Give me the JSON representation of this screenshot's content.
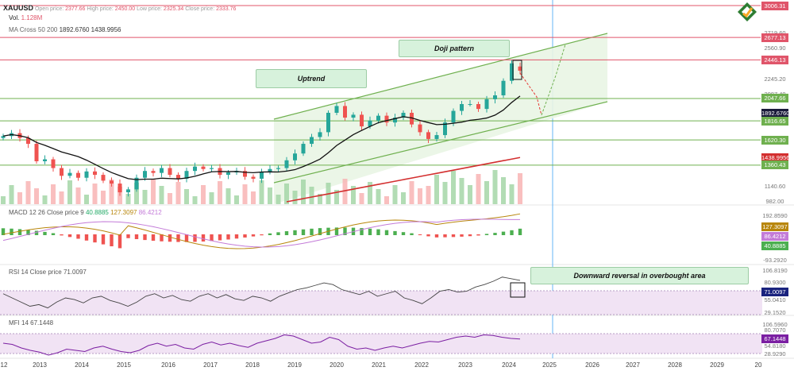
{
  "header": {
    "symbol": "XAUUSD",
    "open_label": "Open price:",
    "open_value": "2377.66",
    "high_label": "High price:",
    "high_value": "2450.00",
    "low_label": "Low price:",
    "low_value": "2325.34",
    "close_label": "Close price:",
    "close_value": "2333.76",
    "vol_label": "Vol.",
    "vol_value": "1.128M",
    "ma_label": "MA Cross 50 200",
    "ma_value1": "1892.6760",
    "ma_value2": "1438.9956"
  },
  "annotations": {
    "uptrend": "Uptrend",
    "doji": "Doji pattern",
    "reversal": "Downward reversal in overbought area"
  },
  "indicators": {
    "macd_label": "MACD 12 26 Close price 9",
    "macd_v1": "40.8885",
    "macd_v2": "127.3097",
    "macd_v3": "86.4212",
    "rsi_label": "RSI 14 Close price",
    "rsi_value": "71.0097",
    "mfi_label": "MFI 14",
    "mfi_value": "67.1448"
  },
  "colors": {
    "bull": "#26a69a",
    "bear": "#ef5350",
    "ma50": "#111111",
    "ma200": "#d32f2f",
    "trend": "#6fb04f",
    "level_red": "#e0556a",
    "level_green": "#6fb04f",
    "rsi_band": "#f3e5f5",
    "mfi_line": "#7b1fa2",
    "macd_line": "#b8860b",
    "signal_line": "#c37bd8"
  },
  "chart_data": {
    "type": "candlestick",
    "title": "XAUUSD",
    "x_axis_years": [
      "12",
      "2013",
      "2014",
      "2015",
      "2016",
      "2017",
      "2018",
      "2019",
      "2020",
      "2021",
      "2022",
      "2023",
      "2024",
      "2025",
      "2026",
      "2027",
      "2028",
      "2029",
      "20"
    ],
    "price_axis_ticks": [
      "3006.31",
      "2719.60",
      "2677.13",
      "2560.90",
      "2446.13",
      "2245.20",
      "2087.40",
      "2047.66",
      "1892.6760",
      "1816.65",
      "1620.30",
      "1438.9956",
      "1360.43",
      "1140.60",
      "982.00"
    ],
    "levels": {
      "red": [
        "3006.31",
        "2677.13",
        "2446.13"
      ],
      "green": [
        "2047.66",
        "1816.65",
        "1620.30",
        "1360.43"
      ]
    },
    "ma_values": [
      "1892.6760",
      "1438.9956"
    ],
    "macd_axis_ticks": [
      "192.8590",
      "127.3097",
      "86.4212",
      "40.8885",
      "-93.2920"
    ],
    "rsi_axis_ticks": [
      "106.8190",
      "80.9300",
      "71.0097",
      "55.0410",
      "29.1520"
    ],
    "mfi_axis_ticks": [
      "106.5960",
      "80.7070",
      "67.1448",
      "54.8180",
      "28.9290"
    ],
    "series_close": [
      1660,
      1690,
      1640,
      1580,
      1400,
      1420,
      1330,
      1250,
      1280,
      1230,
      1295,
      1260,
      1200,
      1170,
      1080,
      1110,
      1230,
      1300,
      1280,
      1330,
      1260,
      1220,
      1300,
      1345,
      1320,
      1330,
      1260,
      1285,
      1300,
      1240,
      1220,
      1290,
      1320,
      1330,
      1410,
      1480,
      1580,
      1650,
      1700,
      1900,
      1970,
      1850,
      1880,
      1760,
      1820,
      1870,
      1800,
      1850,
      1900,
      1780,
      1700,
      1630,
      1670,
      1800,
      1920,
      1990,
      1990,
      1940,
      2040,
      2080,
      2230,
      2410,
      2334
    ],
    "rsi_values": [
      55,
      50,
      45,
      40,
      42,
      38,
      45,
      50,
      48,
      44,
      50,
      52,
      47,
      44,
      40,
      45,
      52,
      55,
      50,
      53,
      48,
      46,
      52,
      55,
      50,
      54,
      49,
      47,
      52,
      50,
      46,
      52,
      56,
      60,
      62,
      65,
      68,
      66,
      60,
      57,
      54,
      58,
      52,
      55,
      58,
      50,
      47,
      43,
      50,
      58,
      60,
      57,
      58,
      63,
      66,
      70,
      75,
      73,
      71
    ],
    "mfi_values": [
      60,
      58,
      52,
      48,
      45,
      40,
      44,
      50,
      48,
      46,
      52,
      55,
      50,
      46,
      44,
      48,
      56,
      60,
      55,
      58,
      52,
      50,
      58,
      62,
      57,
      60,
      56,
      53,
      60,
      64,
      68,
      74,
      72,
      66,
      60,
      62,
      70,
      66,
      55,
      50,
      52,
      48,
      52,
      55,
      52,
      56,
      60,
      63,
      62,
      66,
      70,
      72,
      70,
      74,
      73,
      70,
      68,
      67
    ]
  }
}
